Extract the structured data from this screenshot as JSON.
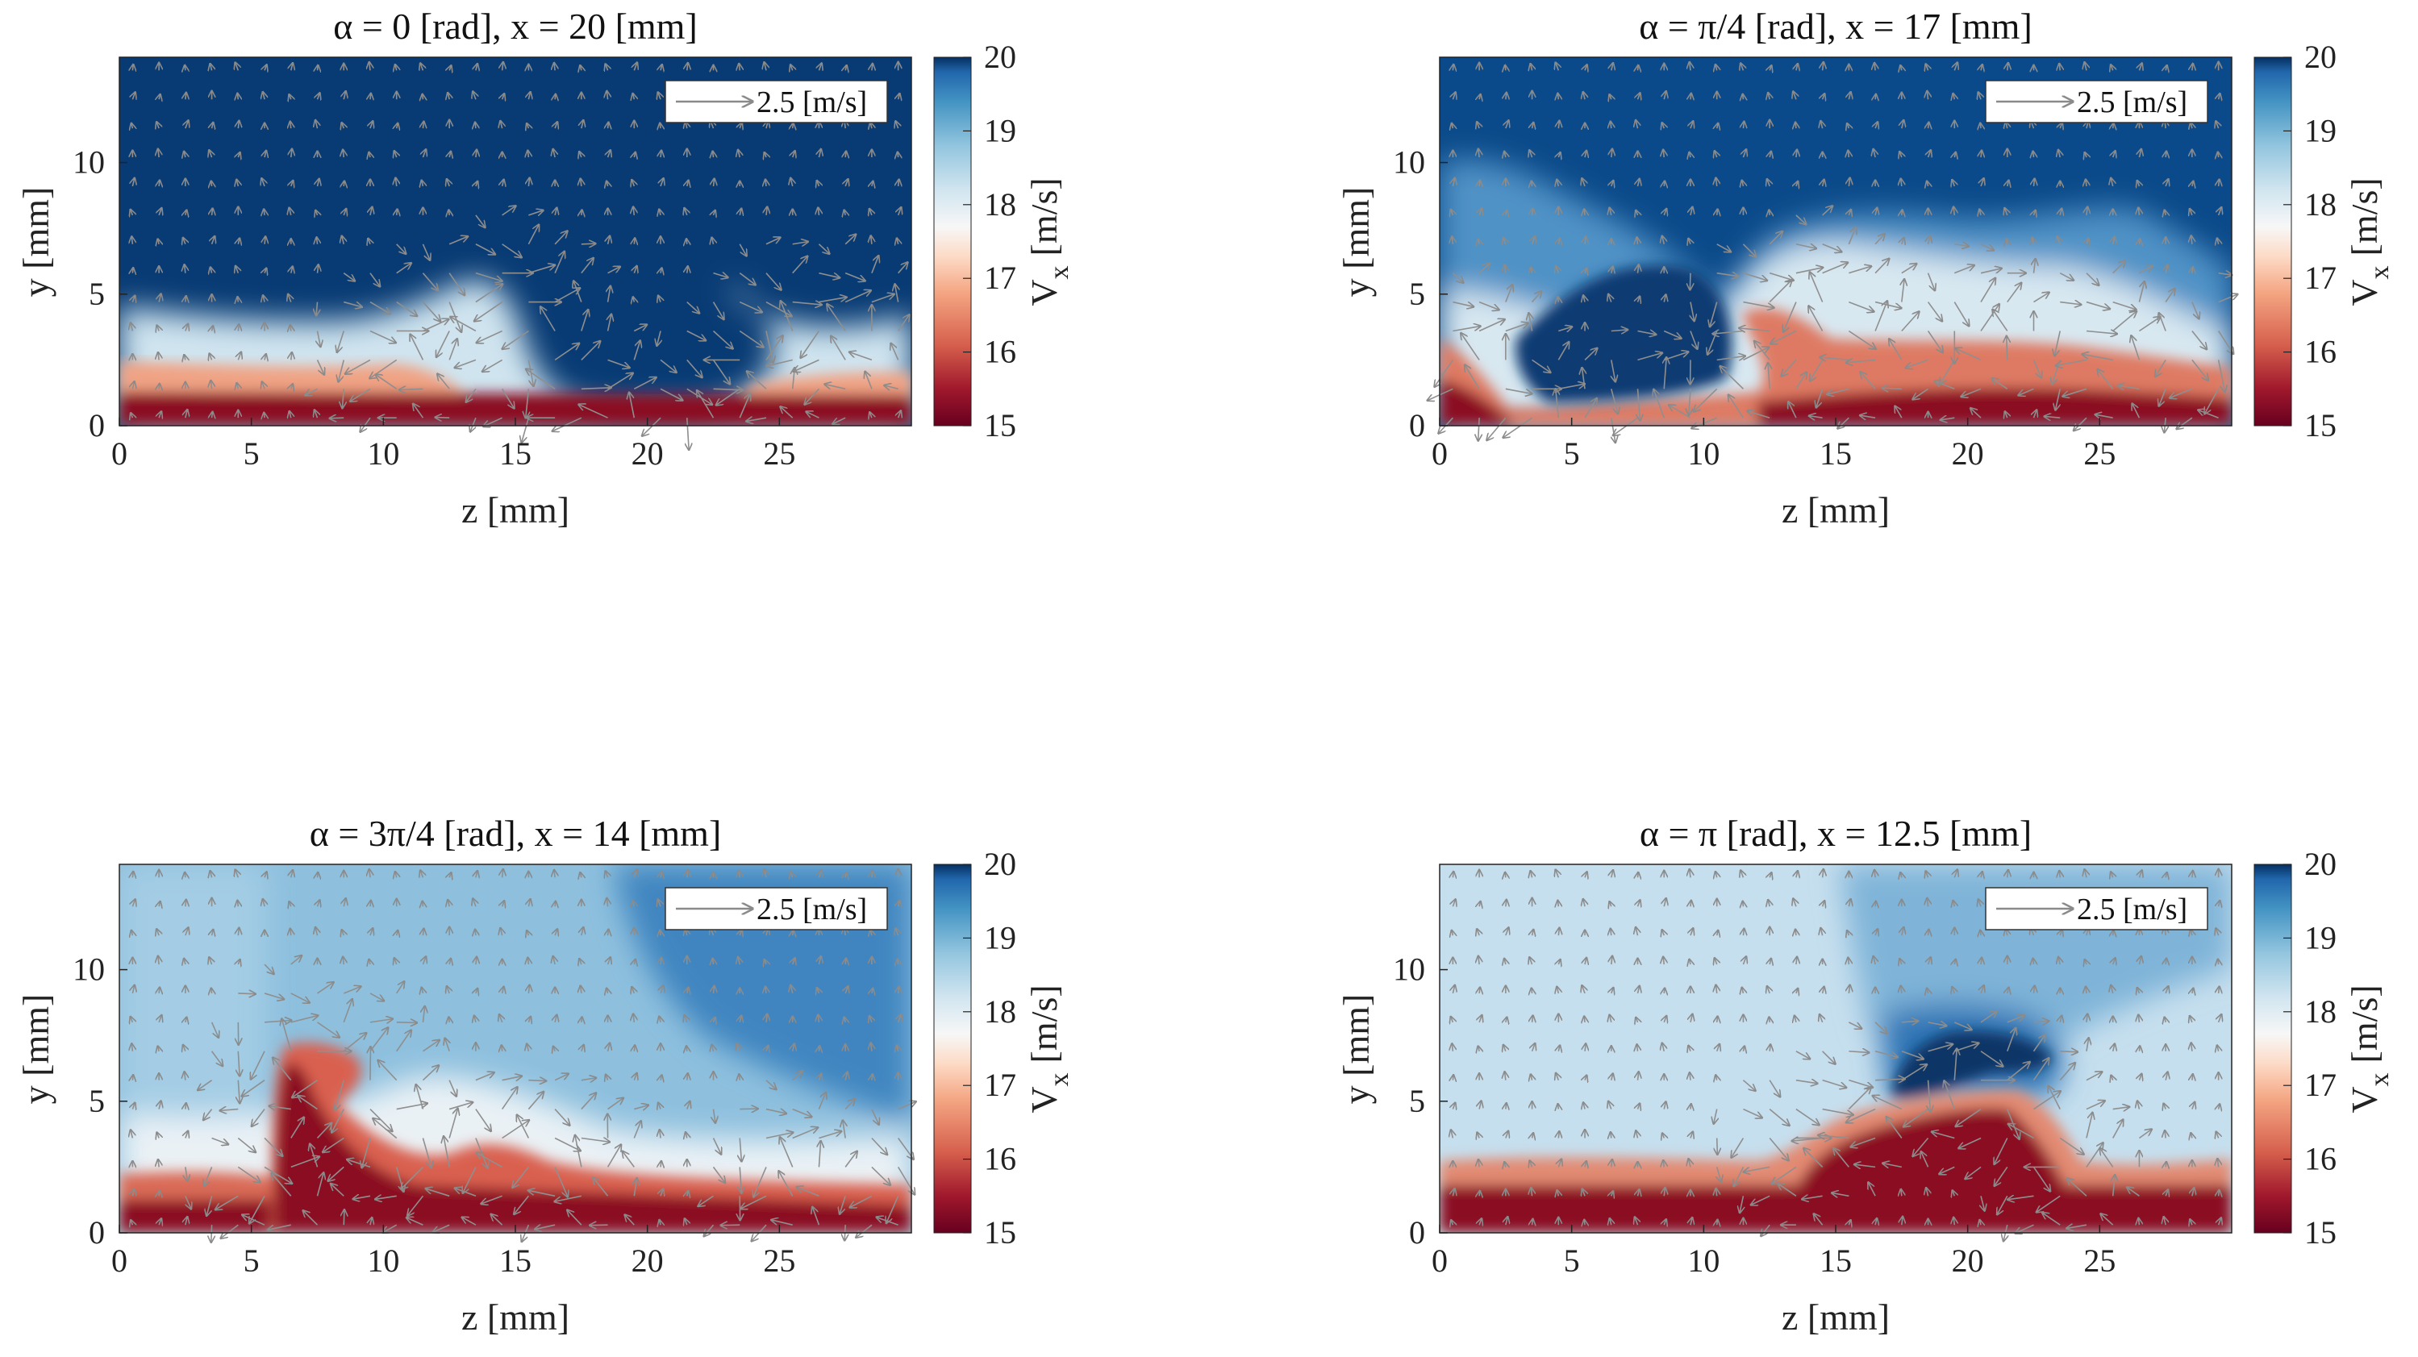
{
  "chart_data": [
    {
      "type": "heatmap",
      "title": "α = 0 [rad], x = 20 [mm]",
      "xlabel": "z [mm]",
      "ylabel": "y [mm]",
      "xlim": [
        0,
        30
      ],
      "ylim": [
        0,
        14
      ],
      "xticks": [
        "0",
        "5",
        "10",
        "15",
        "20",
        "25"
      ],
      "yticks": [
        "0",
        "5",
        "10"
      ],
      "colorbar": {
        "label": "V",
        "label_sub": "x",
        "label_unit": "[m/s]",
        "range": [
          15,
          20
        ],
        "ticks": [
          "15",
          "16",
          "17",
          "18",
          "19",
          "20"
        ]
      },
      "legend": "2.5 [m/s]",
      "grid": false,
      "boundary_layer": {
        "base_thickness_mm": 2.6,
        "low_speed_region": [
          [
            10.5,
            3.0
          ],
          [
            13.0,
            4.5
          ],
          [
            14.5,
            5.0
          ],
          [
            15.5,
            4.2
          ],
          [
            16.5,
            1.5
          ],
          [
            18,
            0.6
          ],
          [
            22,
            0.6
          ],
          [
            23.5,
            2.5
          ],
          [
            25,
            3.8
          ],
          [
            27,
            3.6
          ]
        ]
      }
    },
    {
      "type": "heatmap",
      "title": "α = π/4 [rad], x = 17 [mm]",
      "xlabel": "z [mm]",
      "ylabel": "y [mm]",
      "xlim": [
        0,
        30
      ],
      "ylim": [
        0,
        14
      ],
      "xticks": [
        "0",
        "5",
        "10",
        "15",
        "20",
        "25"
      ],
      "yticks": [
        "0",
        "5",
        "10"
      ],
      "colorbar": {
        "label": "V",
        "label_sub": "x",
        "label_unit": "[m/s]",
        "range": [
          15,
          20
        ],
        "ticks": [
          "15",
          "16",
          "17",
          "18",
          "19",
          "20"
        ]
      },
      "legend": "2.5 [m/s]",
      "grid": false,
      "boundary_layer": {
        "base_thickness_mm": 3.4,
        "low_speed_region": [
          [
            1,
            2.5
          ],
          [
            3.5,
            0.4
          ],
          [
            8,
            1.0
          ],
          [
            11,
            1.5
          ],
          [
            12,
            4.2
          ],
          [
            14,
            4.6
          ],
          [
            16,
            3.4
          ],
          [
            20,
            3.6
          ],
          [
            25,
            3.0
          ],
          [
            30,
            2.4
          ]
        ]
      }
    },
    {
      "type": "heatmap",
      "title": "α = 3π/4 [rad], x = 14 [mm]",
      "xlabel": "z [mm]",
      "ylabel": "y [mm]",
      "xlim": [
        0,
        30
      ],
      "ylim": [
        0,
        14
      ],
      "xticks": [
        "0",
        "5",
        "10",
        "15",
        "20",
        "25"
      ],
      "yticks": [
        "0",
        "5",
        "10"
      ],
      "colorbar": {
        "label": "V",
        "label_sub": "x",
        "label_unit": "[m/s]",
        "range": [
          15,
          20
        ],
        "ticks": [
          "15",
          "16",
          "17",
          "18",
          "19",
          "20"
        ]
      },
      "legend": "2.5 [m/s]",
      "grid": false,
      "boundary_layer": {
        "base_thickness_mm": 2.6,
        "low_speed_region": [
          [
            5.8,
            2.0
          ],
          [
            6.2,
            6.8
          ],
          [
            7.5,
            6.6
          ],
          [
            9.2,
            6.0
          ],
          [
            10,
            4.2
          ],
          [
            12,
            3.0
          ],
          [
            14,
            3.4
          ],
          [
            17,
            2.6
          ],
          [
            25,
            2.4
          ],
          [
            30,
            2.2
          ]
        ]
      }
    },
    {
      "type": "heatmap",
      "title": "α = π [rad], x = 12.5 [mm]",
      "xlabel": "z [mm]",
      "ylabel": "y [mm]",
      "xlim": [
        0,
        30
      ],
      "ylim": [
        0,
        14
      ],
      "xticks": [
        "0",
        "5",
        "10",
        "15",
        "20",
        "25"
      ],
      "yticks": [
        "0",
        "5",
        "10"
      ],
      "colorbar": {
        "label": "V",
        "label_sub": "x",
        "label_unit": "[m/s]",
        "range": [
          15,
          20
        ],
        "ticks": [
          "15",
          "16",
          "17",
          "18",
          "19",
          "20"
        ]
      },
      "legend": "2.5 [m/s]",
      "grid": false,
      "boundary_layer": {
        "base_thickness_mm": 3.6,
        "low_speed_region": [
          [
            13.5,
            3.5
          ],
          [
            15,
            4.2
          ],
          [
            17,
            5.0
          ],
          [
            19,
            5.4
          ],
          [
            20.5,
            5.5
          ],
          [
            22,
            4.5
          ],
          [
            23.5,
            2.5
          ]
        ]
      }
    }
  ]
}
